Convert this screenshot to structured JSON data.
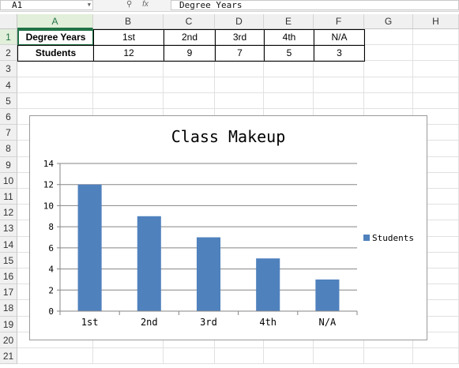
{
  "formula_bar": {
    "name_box": "A1",
    "fx_label": "fx",
    "formula": "Degree Years"
  },
  "columns": [
    "A",
    "B",
    "C",
    "D",
    "E",
    "F",
    "G",
    "H"
  ],
  "rows": [
    "1",
    "2",
    "3",
    "4",
    "5",
    "6",
    "7",
    "8",
    "9",
    "10",
    "11",
    "12",
    "13",
    "14",
    "15",
    "16",
    "17",
    "18",
    "19",
    "20",
    "21"
  ],
  "cells": {
    "A1": "Degree Years",
    "B1": "1st",
    "C1": "2nd",
    "D1": "3rd",
    "E1": "4th",
    "F1": "N/A",
    "A2": "Students",
    "B2": "12",
    "C2": "9",
    "D2": "7",
    "E2": "5",
    "F2": "3"
  },
  "chart_data": {
    "type": "bar",
    "title": "Class Makeup",
    "categories": [
      "1st",
      "2nd",
      "3rd",
      "4th",
      "N/A"
    ],
    "series": [
      {
        "name": "Students",
        "values": [
          12,
          9,
          7,
          5,
          3
        ],
        "color": "#4f81bd"
      }
    ],
    "ylim": [
      0,
      14
    ],
    "yticks": [
      "0",
      "2",
      "4",
      "6",
      "8",
      "10",
      "12",
      "14"
    ],
    "grid": true,
    "legend": "right"
  }
}
